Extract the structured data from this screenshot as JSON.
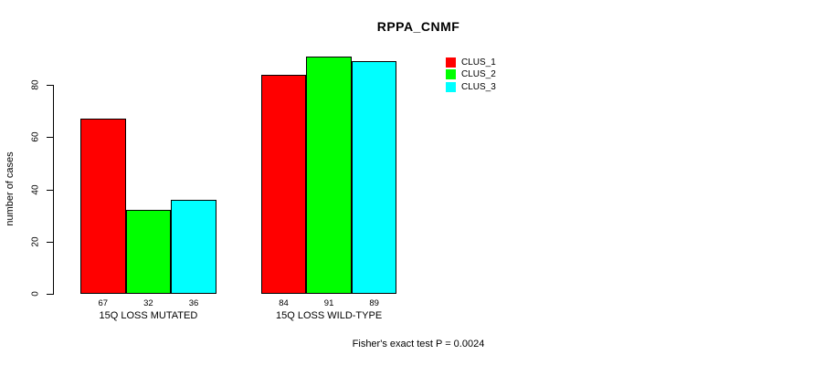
{
  "title": "RPPA_CNMF",
  "y_axis_label": "number of cases",
  "footer_note": "Fisher's exact test P = 0.0024",
  "legend": {
    "position": "top-right",
    "items": [
      {
        "label": "CLUS_1",
        "color": "#FF0000"
      },
      {
        "label": "CLUS_2",
        "color": "#00FF00"
      },
      {
        "label": "CLUS_3",
        "color": "#00FFFF"
      }
    ]
  },
  "chart_data": {
    "type": "bar",
    "title": "RPPA_CNMF",
    "xlabel": "",
    "ylabel": "number of cases",
    "categories": [
      "15Q LOSS MUTATED",
      "15Q LOSS WILD-TYPE"
    ],
    "series": [
      {
        "name": "CLUS_1",
        "color": "#FF0000",
        "values": [
          67,
          84
        ]
      },
      {
        "name": "CLUS_2",
        "color": "#00FF00",
        "values": [
          32,
          91
        ]
      },
      {
        "name": "CLUS_3",
        "color": "#00FFFF",
        "values": [
          36,
          89
        ]
      }
    ],
    "bar_value_labels": [
      [
        67,
        32,
        36
      ],
      [
        84,
        91,
        89
      ]
    ],
    "yticks": [
      0,
      20,
      40,
      60,
      80
    ],
    "ylim": [
      0,
      91
    ],
    "grid": false,
    "legend_position": "top-right",
    "annotation": "Fisher's exact test P = 0.0024"
  }
}
